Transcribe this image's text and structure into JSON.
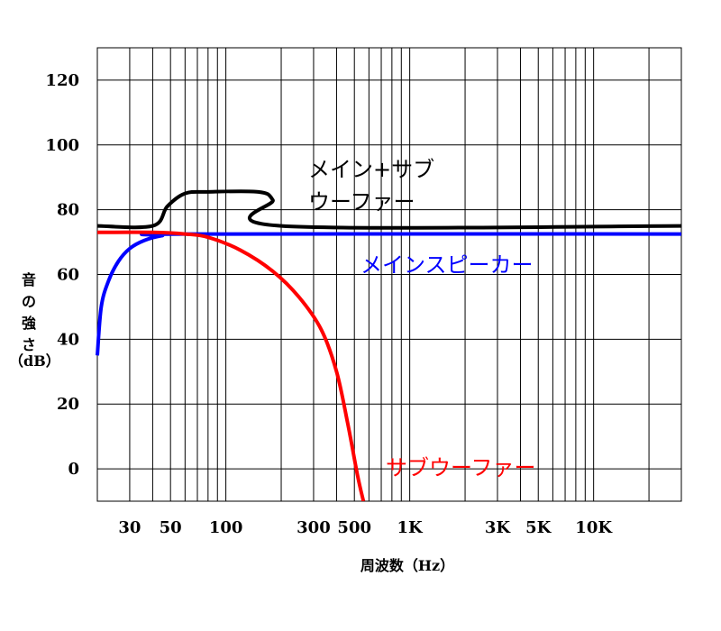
{
  "chart_data": {
    "type": "line",
    "xlabel": "周波数（Hz）",
    "ylabel_lines": [
      "音",
      "の",
      "強",
      "さ",
      "（dB）"
    ],
    "x_scale": "log",
    "xlim": [
      20,
      30000
    ],
    "ylim": [
      -10,
      130
    ],
    "x_ticks": [
      {
        "value": 30,
        "label": "30"
      },
      {
        "value": 50,
        "label": "50"
      },
      {
        "value": 100,
        "label": "100"
      },
      {
        "value": 300,
        "label": "300"
      },
      {
        "value": 500,
        "label": "500"
      },
      {
        "value": 1000,
        "label": "1K"
      },
      {
        "value": 3000,
        "label": "3K"
      },
      {
        "value": 5000,
        "label": "5K"
      },
      {
        "value": 10000,
        "label": "10K"
      }
    ],
    "y_ticks": [
      0,
      20,
      40,
      60,
      80,
      100,
      120
    ],
    "grid": true,
    "series": [
      {
        "label_lines": [
          "メイン+サブ",
          "ウーファー"
        ],
        "color": "#000000",
        "points": [
          [
            20,
            75
          ],
          [
            40,
            75
          ],
          [
            48,
            81
          ],
          [
            60,
            85
          ],
          [
            80,
            85.5
          ],
          [
            150,
            85.5
          ],
          [
            180,
            83
          ],
          [
            200,
            75
          ],
          [
            30000,
            75
          ]
        ]
      },
      {
        "label_lines": [
          "メインスピーカー"
        ],
        "color": "#0000ff",
        "points": [
          [
            20,
            35
          ],
          [
            21,
            50
          ],
          [
            23,
            58
          ],
          [
            26,
            64
          ],
          [
            30,
            68
          ],
          [
            36,
            70.5
          ],
          [
            45,
            72
          ],
          [
            60,
            72.5
          ],
          [
            30000,
            72.5
          ]
        ]
      },
      {
        "label_lines": [
          "サブウーファー"
        ],
        "color": "#ff0000",
        "points": [
          [
            20,
            73
          ],
          [
            40,
            73
          ],
          [
            60,
            72.5
          ],
          [
            80,
            71.5
          ],
          [
            120,
            67.5
          ],
          [
            180,
            61
          ],
          [
            250,
            53
          ],
          [
            330,
            43
          ],
          [
            400,
            30
          ],
          [
            460,
            14
          ],
          [
            520,
            -2
          ],
          [
            560,
            -10
          ]
        ]
      }
    ]
  }
}
